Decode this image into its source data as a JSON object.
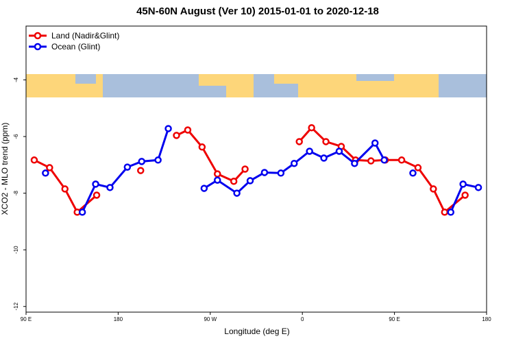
{
  "chart_data": {
    "type": "line",
    "title": "45N-60N August (Ver 10)   2015-01-01 to 2020-12-18",
    "x_label": "Longitude (deg E)",
    "y_label": "XCO2 - MLO trend (ppm)",
    "xlim": [
      90,
      540
    ],
    "xticks": [
      {
        "value": 90,
        "label": "90 E"
      },
      180,
      {
        "value": 270,
        "label": "90 W"
      },
      {
        "value": 360,
        "label": "0"
      },
      {
        "value": 450,
        "label": "90 E"
      },
      {
        "value": 540,
        "label": "180"
      }
    ],
    "ylim": [
      -12.2,
      -2.1
    ],
    "yticks": [
      -4,
      -6,
      -8,
      -10,
      -12
    ],
    "legend": "top-left",
    "series": [
      {
        "name": "Land (Nadir&Glint)",
        "color": "#ee0000",
        "x": [
          98,
          113,
          128,
          140,
          159,
          null,
          202,
          null,
          237,
          248,
          262,
          277,
          293,
          304,
          null,
          357,
          369,
          383,
          398,
          412,
          427,
          441,
          457,
          473,
          488,
          499,
          519
        ],
        "values": [
          -6.83,
          -7.1,
          -7.85,
          -8.67,
          -8.07,
          null,
          -7.2,
          null,
          -5.96,
          -5.77,
          -6.37,
          -7.32,
          -7.58,
          -7.15,
          null,
          -6.18,
          -5.69,
          -6.18,
          -6.35,
          -6.83,
          -6.86,
          -6.83,
          -6.83,
          -7.1,
          -7.85,
          -8.67,
          -8.07
        ]
      },
      {
        "name": "Ocean (Glint)",
        "color": "#0000ee",
        "x": [
          109,
          null,
          145,
          158,
          172,
          189,
          203,
          219,
          229,
          null,
          264,
          277,
          296,
          309,
          323,
          339,
          352,
          367,
          381,
          396,
          411,
          431,
          440,
          null,
          468,
          null,
          505,
          517,
          532
        ],
        "values": [
          -7.29,
          null,
          -8.67,
          -7.68,
          -7.8,
          -7.08,
          -6.88,
          -6.83,
          -5.72,
          null,
          -7.83,
          -7.54,
          -8.0,
          -7.56,
          -7.27,
          -7.29,
          -6.95,
          -6.52,
          -6.76,
          -6.52,
          -6.95,
          -6.23,
          -6.83,
          null,
          -7.29,
          null,
          -8.67,
          -7.68,
          -7.8
        ]
      }
    ]
  }
}
